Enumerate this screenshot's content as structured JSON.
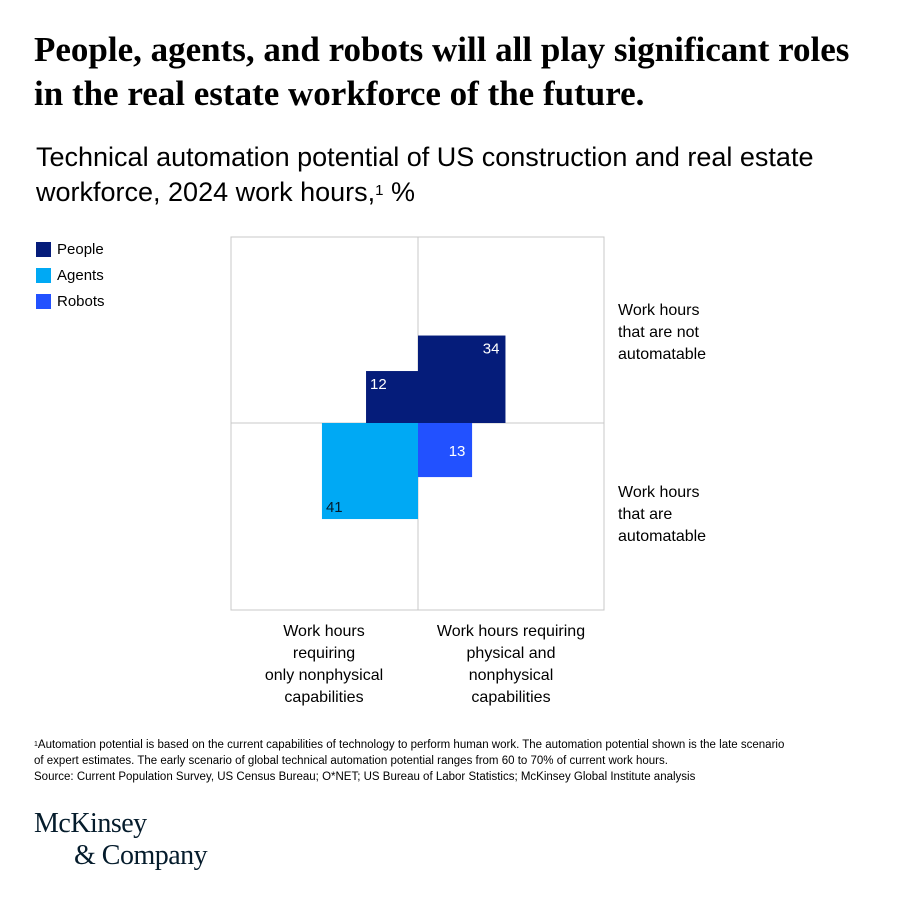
{
  "headline": "People, agents, and robots will all play significant roles in the real estate workforce of the future.",
  "subtitle": {
    "text": "Technical automation potential of US construction and real estate workforce, 2024 work hours,",
    "footnote_mark": "1",
    "unit": " %"
  },
  "colors": {
    "people": "#051c7a",
    "agents": "#00a9f4",
    "robots": "#2251ff",
    "grid": "#c8c8c8"
  },
  "chart_data": {
    "type": "quadrant-area",
    "title": "Technical automation potential of US construction and real estate workforce, 2024 work hours, %",
    "legend": [
      {
        "key": "people",
        "label": "People"
      },
      {
        "key": "agents",
        "label": "Agents"
      },
      {
        "key": "robots",
        "label": "Robots"
      }
    ],
    "legend_position": "top-left",
    "columns": [
      {
        "key": "nonphysical",
        "label_lines": [
          "Work hours",
          "requiring",
          "only nonphysical",
          "capabilities"
        ]
      },
      {
        "key": "physical",
        "label_lines": [
          "Work hours requiring",
          "physical and",
          "nonphysical",
          "capabilities"
        ]
      }
    ],
    "rows": [
      {
        "key": "not_automatable",
        "label_lines": [
          "Work hours",
          "that are not",
          "automatable"
        ]
      },
      {
        "key": "automatable",
        "label_lines": [
          "Work hours",
          "that are",
          "automatable"
        ]
      }
    ],
    "cells": [
      {
        "row": "not_automatable",
        "column": "nonphysical",
        "series": "people",
        "value": 12
      },
      {
        "row": "not_automatable",
        "column": "physical",
        "series": "people",
        "value": 34
      },
      {
        "row": "automatable",
        "column": "nonphysical",
        "series": "agents",
        "value": 41
      },
      {
        "row": "automatable",
        "column": "physical",
        "series": "robots",
        "value": 13
      }
    ]
  },
  "footnote": {
    "mark": "1",
    "line1": "Automation potential is based on the current capabilities of technology to perform human work. The automation potential shown is the late scenario",
    "line2": "of expert estimates. The early scenario of global technical automation potential ranges from 60 to 70% of current work hours.",
    "source": "Source: Current Population Survey, US Census Bureau; O*NET; US Bureau of Labor Statistics; McKinsey Global Institute analysis"
  },
  "logo": {
    "line1": "McKinsey",
    "line2": "& Company"
  }
}
